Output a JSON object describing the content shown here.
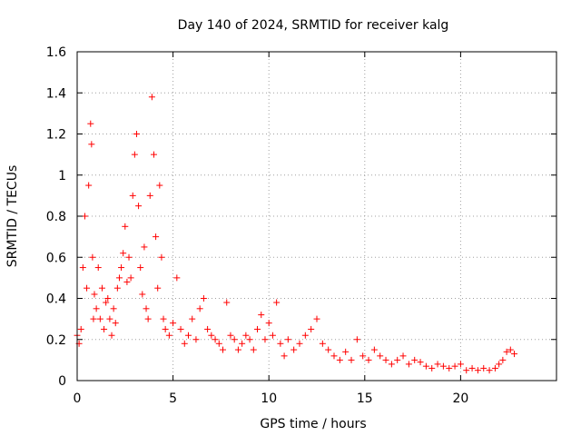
{
  "chart_data": {
    "type": "scatter",
    "title": "Day 140 of 2024, SRMTID for receiver kalg",
    "xlabel": "GPS time / hours",
    "ylabel": "SRMTID / TECUs",
    "xlim": [
      0,
      25
    ],
    "ylim": [
      0,
      1.6
    ],
    "xticks": [
      0,
      5,
      10,
      15,
      20
    ],
    "xtick_labels": [
      "0",
      "5",
      "10",
      "15",
      "20"
    ],
    "yticks": [
      0,
      0.2,
      0.4,
      0.6,
      0.8,
      1.0,
      1.2,
      1.4,
      1.6
    ],
    "ytick_labels": [
      "0",
      "0.2",
      "0.4",
      "0.6",
      "0.8",
      "1",
      "1.2",
      "1.4",
      "1.6"
    ],
    "grid": true,
    "marker": "+",
    "marker_color": "#ff0000",
    "series": [
      {
        "name": "SRMTID",
        "x": [
          0.0,
          0.1,
          0.2,
          0.3,
          0.4,
          0.5,
          0.6,
          0.7,
          0.75,
          0.8,
          0.85,
          0.9,
          1.0,
          1.1,
          1.2,
          1.3,
          1.4,
          1.5,
          1.6,
          1.7,
          1.8,
          1.9,
          2.0,
          2.1,
          2.2,
          2.3,
          2.4,
          2.5,
          2.6,
          2.7,
          2.8,
          2.9,
          3.0,
          3.1,
          3.2,
          3.3,
          3.4,
          3.5,
          3.6,
          3.7,
          3.8,
          3.9,
          4.0,
          4.1,
          4.2,
          4.3,
          4.4,
          4.5,
          4.6,
          4.8,
          5.0,
          5.2,
          5.4,
          5.6,
          5.8,
          6.0,
          6.2,
          6.4,
          6.6,
          6.8,
          7.0,
          7.2,
          7.4,
          7.6,
          7.8,
          8.0,
          8.2,
          8.4,
          8.6,
          8.8,
          9.0,
          9.2,
          9.4,
          9.6,
          9.8,
          10.0,
          10.2,
          10.4,
          10.6,
          10.8,
          11.0,
          11.3,
          11.6,
          11.9,
          12.2,
          12.5,
          12.8,
          13.1,
          13.4,
          13.7,
          14.0,
          14.3,
          14.6,
          14.9,
          15.2,
          15.5,
          15.8,
          16.1,
          16.4,
          16.7,
          17.0,
          17.3,
          17.6,
          17.9,
          18.2,
          18.5,
          18.8,
          19.1,
          19.4,
          19.7,
          20.0,
          20.3,
          20.6,
          20.9,
          21.2,
          21.5,
          21.8,
          22.0,
          22.2,
          22.4,
          22.6,
          22.8
        ],
        "y": [
          0.22,
          0.18,
          0.25,
          0.55,
          0.8,
          0.45,
          0.95,
          1.25,
          1.15,
          0.6,
          0.3,
          0.42,
          0.35,
          0.55,
          0.3,
          0.45,
          0.25,
          0.38,
          0.4,
          0.3,
          0.22,
          0.35,
          0.28,
          0.45,
          0.5,
          0.55,
          0.62,
          0.75,
          0.48,
          0.6,
          0.5,
          0.9,
          1.1,
          1.2,
          0.85,
          0.55,
          0.42,
          0.65,
          0.35,
          0.3,
          0.9,
          1.38,
          1.1,
          0.7,
          0.45,
          0.95,
          0.6,
          0.3,
          0.25,
          0.22,
          0.28,
          0.5,
          0.25,
          0.18,
          0.22,
          0.3,
          0.2,
          0.35,
          0.4,
          0.25,
          0.22,
          0.2,
          0.18,
          0.15,
          0.38,
          0.22,
          0.2,
          0.15,
          0.18,
          0.22,
          0.2,
          0.15,
          0.25,
          0.32,
          0.2,
          0.28,
          0.22,
          0.38,
          0.18,
          0.12,
          0.2,
          0.15,
          0.18,
          0.22,
          0.25,
          0.3,
          0.18,
          0.15,
          0.12,
          0.1,
          0.14,
          0.1,
          0.2,
          0.12,
          0.1,
          0.15,
          0.12,
          0.1,
          0.08,
          0.1,
          0.12,
          0.08,
          0.1,
          0.09,
          0.07,
          0.06,
          0.08,
          0.07,
          0.06,
          0.07,
          0.08,
          0.05,
          0.06,
          0.05,
          0.06,
          0.05,
          0.06,
          0.08,
          0.1,
          0.14,
          0.15,
          0.13
        ]
      }
    ]
  }
}
